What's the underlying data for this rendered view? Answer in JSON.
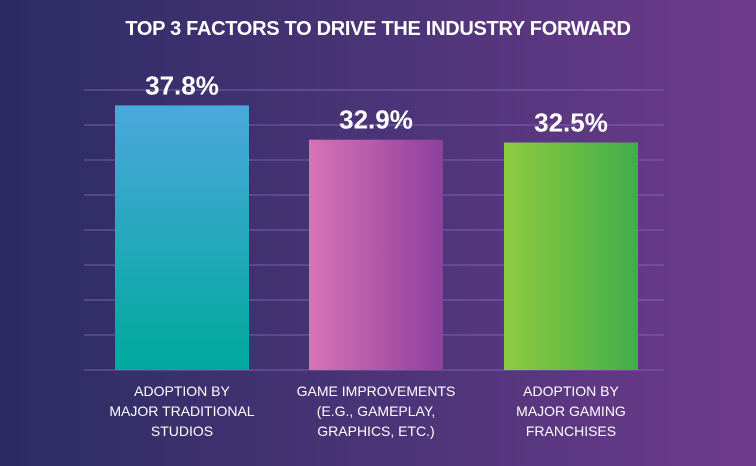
{
  "chart_data": {
    "type": "bar",
    "title": "TOP 3 FACTORS TO DRIVE THE INDUSTRY FORWARD",
    "categories": [
      "ADOPTION BY MAJOR TRADITIONAL STUDIOS",
      "GAME IMPROVEMENTS (E.G., GAMEPLAY, GRAPHICS, ETC.)",
      "ADOPTION BY MAJOR GAMING FRANCHISES"
    ],
    "category_lines": [
      [
        "ADOPTION BY",
        "MAJOR TRADITIONAL",
        "STUDIOS"
      ],
      [
        "GAME IMPROVEMENTS",
        "(E.G., GAMEPLAY,",
        "GRAPHICS, ETC.)"
      ],
      [
        "ADOPTION BY",
        "MAJOR GAMING",
        "FRANCHISES"
      ]
    ],
    "values": [
      37.8,
      32.9,
      32.5
    ],
    "value_labels": [
      "37.8%",
      "32.9%",
      "32.5%"
    ],
    "unit": "%",
    "ylim": [
      0,
      40
    ],
    "grid": true,
    "colors": [
      [
        "#4aa8dc",
        "#00a99d"
      ],
      [
        "#d873b5",
        "#8e3f9e"
      ],
      [
        "#8fcb3f",
        "#3fae49"
      ]
    ],
    "grid_color": "#8c6fc4",
    "text_color": "#ffffff"
  }
}
